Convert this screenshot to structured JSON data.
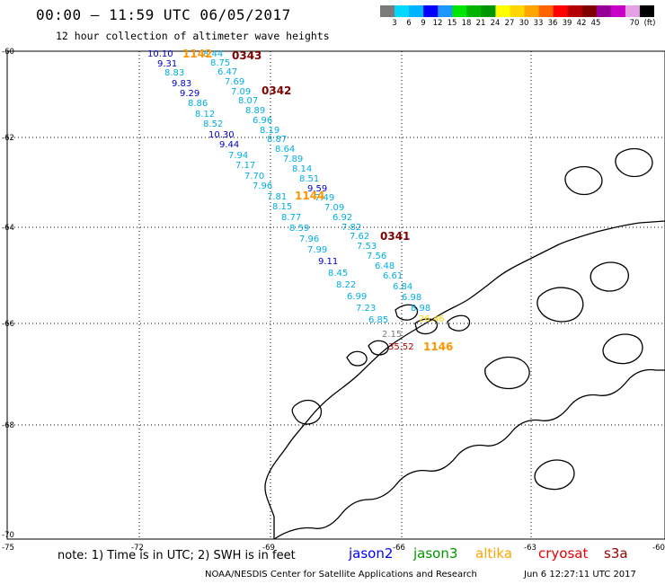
{
  "header": {
    "title": "00:00 – 11:59 UTC 06/05/2017",
    "subtitle": "12 hour collection of altimeter wave heights"
  },
  "colorbar": {
    "colors": [
      "#7a7a7a",
      "#00d8ff",
      "#00b4ff",
      "#0000ff",
      "#1e96ff",
      "#00e600",
      "#00b400",
      "#009600",
      "#ffff00",
      "#ffd700",
      "#ffa500",
      "#ff6400",
      "#ff0000",
      "#b40000",
      "#800000",
      "#960096",
      "#c800c8",
      "#e6a0e6",
      "#000000"
    ],
    "labels": [
      "3",
      "6",
      "9",
      "12",
      "15",
      "18",
      "21",
      "24",
      "27",
      "30",
      "33",
      "36",
      "39",
      "42",
      "45",
      "70",
      "(ft)"
    ]
  },
  "map": {
    "lat_labels": [
      "-60",
      "-62",
      "-64",
      "-66",
      "-68",
      "-70"
    ],
    "lon_labels": [
      "-75",
      "-72",
      "-69",
      "-66",
      "-63",
      "-60"
    ],
    "lon_range": [
      -75,
      -60
    ],
    "lat_range": [
      -70,
      -60
    ]
  },
  "points": [
    {
      "text": "10.10",
      "color": "#0000c8"
    },
    {
      "text": "8.44",
      "color": "#00aee6"
    },
    {
      "text": "9.31",
      "color": "#0000c8"
    },
    {
      "text": "8.75",
      "color": "#00aee6"
    },
    {
      "text": "8.83",
      "color": "#00aee6"
    },
    {
      "text": "6.47",
      "color": "#00aee6"
    },
    {
      "text": "9.83",
      "color": "#0000c8"
    },
    {
      "text": "7.69",
      "color": "#00aee6"
    },
    {
      "text": "9.29",
      "color": "#0000c8"
    },
    {
      "text": "7.09",
      "color": "#00aee6"
    },
    {
      "text": "8.86",
      "color": "#00aee6"
    },
    {
      "text": "8.07",
      "color": "#00aee6"
    },
    {
      "text": "8.12",
      "color": "#00aee6"
    },
    {
      "text": "8.89",
      "color": "#00aee6"
    },
    {
      "text": "8.52",
      "color": "#00aee6"
    },
    {
      "text": "6.96",
      "color": "#00aee6"
    },
    {
      "text": "10.30",
      "color": "#0000c8"
    },
    {
      "text": "8.19",
      "color": "#00aee6"
    },
    {
      "text": "9.44",
      "color": "#0000c8"
    },
    {
      "text": "8.87",
      "color": "#00aee6"
    },
    {
      "text": "7.94",
      "color": "#00aee6"
    },
    {
      "text": "8.64",
      "color": "#00aee6"
    },
    {
      "text": "7.17",
      "color": "#00aee6"
    },
    {
      "text": "7.89",
      "color": "#00aee6"
    },
    {
      "text": "7.70",
      "color": "#00aee6"
    },
    {
      "text": "8.14",
      "color": "#00aee6"
    },
    {
      "text": "7.96",
      "color": "#00aee6"
    },
    {
      "text": "8.51",
      "color": "#00aee6"
    },
    {
      "text": "9.59",
      "color": "#0000c8"
    },
    {
      "text": "7.81",
      "color": "#00aee6"
    },
    {
      "text": "7.49",
      "color": "#00aee6"
    },
    {
      "text": "8.15",
      "color": "#00aee6"
    },
    {
      "text": "7.09",
      "color": "#00aee6"
    },
    {
      "text": "8.77",
      "color": "#00aee6"
    },
    {
      "text": "6.92",
      "color": "#00aee6"
    },
    {
      "text": "8.59",
      "color": "#00aee6"
    },
    {
      "text": "7.82",
      "color": "#00aee6"
    },
    {
      "text": "7.96",
      "color": "#00aee6"
    },
    {
      "text": "7.62",
      "color": "#00aee6"
    },
    {
      "text": "7.99",
      "color": "#00aee6"
    },
    {
      "text": "7.53",
      "color": "#00aee6"
    },
    {
      "text": "9.11",
      "color": "#0000c8"
    },
    {
      "text": "7.56",
      "color": "#00aee6"
    },
    {
      "text": "8.45",
      "color": "#00aee6"
    },
    {
      "text": "6.48",
      "color": "#00aee6"
    },
    {
      "text": "8.22",
      "color": "#00aee6"
    },
    {
      "text": "6.61",
      "color": "#00aee6"
    },
    {
      "text": "6.99",
      "color": "#00aee6"
    },
    {
      "text": "6.84",
      "color": "#00aee6"
    },
    {
      "text": "7.23",
      "color": "#00aee6"
    },
    {
      "text": "6.98",
      "color": "#00aee6"
    },
    {
      "text": "8.98",
      "color": "#00aee6"
    },
    {
      "text": "6.85",
      "color": "#00aee6"
    },
    {
      "text": "26.46",
      "color": "#ffd700"
    },
    {
      "text": "2.15",
      "color": "#7a7a7a"
    },
    {
      "text": "35.52",
      "color": "#b40000"
    }
  ],
  "time_labels": [
    {
      "text": "1142",
      "color": "#ff9600"
    },
    {
      "text": "0343",
      "color": "#800000"
    },
    {
      "text": "0342",
      "color": "#800000"
    },
    {
      "text": "1144",
      "color": "#ff9600"
    },
    {
      "text": "0341",
      "color": "#800000"
    },
    {
      "text": "1146",
      "color": "#ff9600"
    }
  ],
  "footer": {
    "note": "note:  1) Time is in UTC;  2) SWH is in feet",
    "credit": "NOAA/NESDIS Center for Satellite Applications and Research",
    "timestamp": "Jun  6 12:27:11 UTC 2017"
  },
  "legend": [
    {
      "label": "jason2",
      "color": "#0000ff"
    },
    {
      "label": "jason3",
      "color": "#009600"
    },
    {
      "label": "altika",
      "color": "#ffa500"
    },
    {
      "label": "cryosat",
      "color": "#e60000"
    },
    {
      "label": "s3a",
      "color": "#960000"
    }
  ]
}
